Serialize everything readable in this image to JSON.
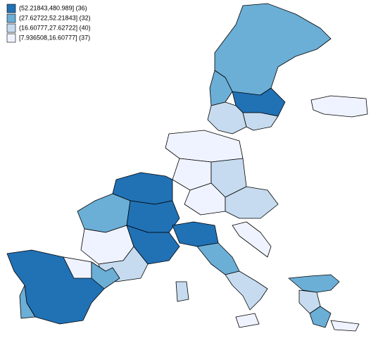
{
  "legend": {
    "items": [
      {
        "label": "(52.21843,480.989] (36)",
        "color": "#2171b5"
      },
      {
        "label": "(27.62722,52.21843] (32)",
        "color": "#6baed6"
      },
      {
        "label": "(16.60777,27.62722] (40)",
        "color": "#c6dbef"
      },
      {
        "label": "[7.936508,16.60777] (37)",
        "color": "#eff3ff"
      }
    ]
  }
}
